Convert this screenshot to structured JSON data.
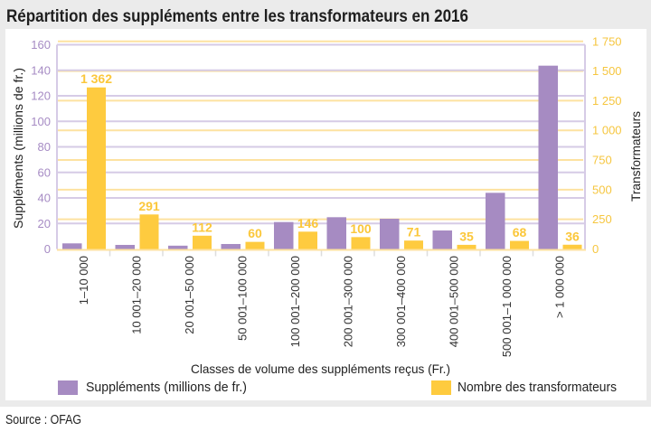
{
  "figure": {
    "title": "Répartition des suppléments entre les transformateurs en 2016",
    "source": "Source : OFAG"
  },
  "chart_data": {
    "type": "bar",
    "title": "Répartition des suppléments entre les transformateurs en 2016",
    "xlabel": "Classes de volume des suppléments reçus (Fr.)",
    "ylabel": "Suppléments (millions de fr.)",
    "y2label": "Transformateurs",
    "categories": [
      "1–10 000",
      "10 001–20 000",
      "20 001–50 000",
      "50 001–100 000",
      "100 001–200 000",
      "200 001–300 000",
      "300 001–400 000",
      "400 001–500 000",
      "500 001–1 000 000",
      "> 1 000 000"
    ],
    "series": [
      {
        "name": "Suppléments (millions de fr.)",
        "axis": "left",
        "color": "#a68bc2",
        "values": [
          4.4,
          3.2,
          2.6,
          3.9,
          21.1,
          24.9,
          23.7,
          14.5,
          44.0,
          143.6
        ]
      },
      {
        "name": "Nombre des transformateurs",
        "axis": "right",
        "color": "#fecb3f",
        "values": [
          1362,
          291,
          112,
          60,
          146,
          100,
          71,
          35,
          68,
          36
        ],
        "data_labels": [
          "1 362",
          "291",
          "112",
          "60",
          "146",
          "100",
          "71",
          "35",
          "68",
          "36"
        ]
      }
    ],
    "ylim": [
      0,
      160
    ],
    "y2lim": [
      0,
      1750
    ],
    "yticks": [
      0,
      20,
      40,
      60,
      80,
      100,
      120,
      140,
      160
    ],
    "ytick_labels": [
      "0",
      "20",
      "40",
      "60",
      "80",
      "100",
      "120",
      "140",
      "160"
    ],
    "y2ticks": [
      0,
      250,
      500,
      750,
      1000,
      1250,
      1500,
      1750
    ],
    "y2tick_labels": [
      "0",
      "250",
      "500",
      "750",
      "1 000",
      "1 250",
      "1 500",
      "1 750"
    ],
    "grid": true,
    "colors": {
      "left_axis": "#a68bc4",
      "right_axis": "#f6c63f",
      "left_grid": "#d6cbe6",
      "right_grid": "#fde2a0"
    },
    "legend": {
      "placement": "bottom",
      "entries": [
        {
          "label": "Suppléments (millions de fr.)",
          "color": "#a68bc2"
        },
        {
          "label": "Nombre des transformateurs",
          "color": "#fecb3f"
        }
      ]
    }
  }
}
